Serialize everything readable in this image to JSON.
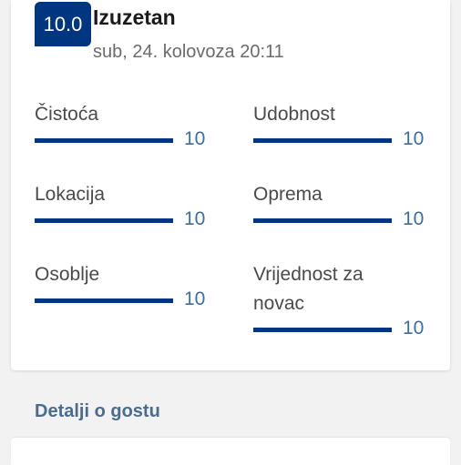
{
  "review": {
    "score": "10.0",
    "title": "Izuzetan",
    "date": "sub, 24. kolovoza 20:11"
  },
  "categories": [
    {
      "label": "Čistoća",
      "value": "10",
      "fill": 1.0
    },
    {
      "label": "Udobnost",
      "value": "10",
      "fill": 1.0
    },
    {
      "label": "Lokacija",
      "value": "10",
      "fill": 1.0
    },
    {
      "label": "Oprema",
      "value": "10",
      "fill": 1.0
    },
    {
      "label": "Osoblje",
      "value": "10",
      "fill": 1.0
    },
    {
      "label": "Vrijednost za novac",
      "value": "10",
      "fill": 1.0
    }
  ],
  "guest_section": {
    "title": "Detalji o gostu"
  },
  "colors": {
    "brand": "#003580",
    "value_text": "#3d6e9e",
    "section_title": "#4b6c8c"
  }
}
